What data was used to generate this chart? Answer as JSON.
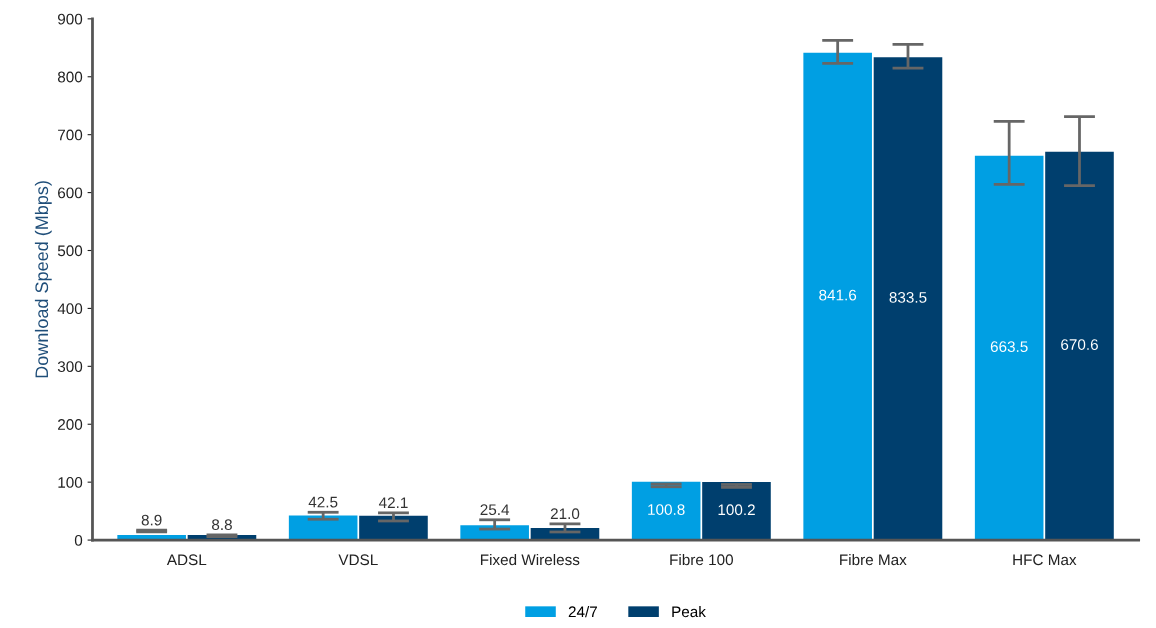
{
  "chart_data": {
    "type": "bar",
    "ylabel": "Download Speed (Mbps)",
    "categories": [
      "ADSL",
      "VDSL",
      "Fixed Wireless",
      "Fibre 100",
      "Fibre Max",
      "HFC Max"
    ],
    "series": [
      {
        "name": "24/7",
        "color": "#009fe3",
        "values": [
          8.9,
          42.5,
          25.4,
          100.8,
          841.6,
          663.5
        ],
        "value_labels": [
          "8.9",
          "42.5",
          "25.4",
          "100.8",
          "841.6",
          "663.5"
        ],
        "errors": [
          [
            14,
            17
          ],
          [
            36,
            48
          ],
          [
            19,
            35
          ],
          [
            92,
            97
          ],
          [
            823,
            863
          ],
          [
            614,
            723
          ]
        ]
      },
      {
        "name": "Peak",
        "color": "#003f6e",
        "values": [
          8.8,
          42.1,
          21.0,
          100.2,
          833.5,
          670.6
        ],
        "value_labels": [
          "8.8",
          "42.1",
          "21.0",
          "100.2",
          "833.5",
          "670.6"
        ],
        "errors": [
          [
            6,
            9
          ],
          [
            33,
            47
          ],
          [
            14,
            28
          ],
          [
            91,
            96
          ],
          [
            815,
            856
          ],
          [
            612,
            731
          ]
        ]
      }
    ],
    "ylim": [
      0,
      900
    ],
    "yticks": [
      0,
      100,
      200,
      300,
      400,
      500,
      600,
      700,
      800,
      900
    ],
    "grid": false,
    "legend": "bottom"
  }
}
